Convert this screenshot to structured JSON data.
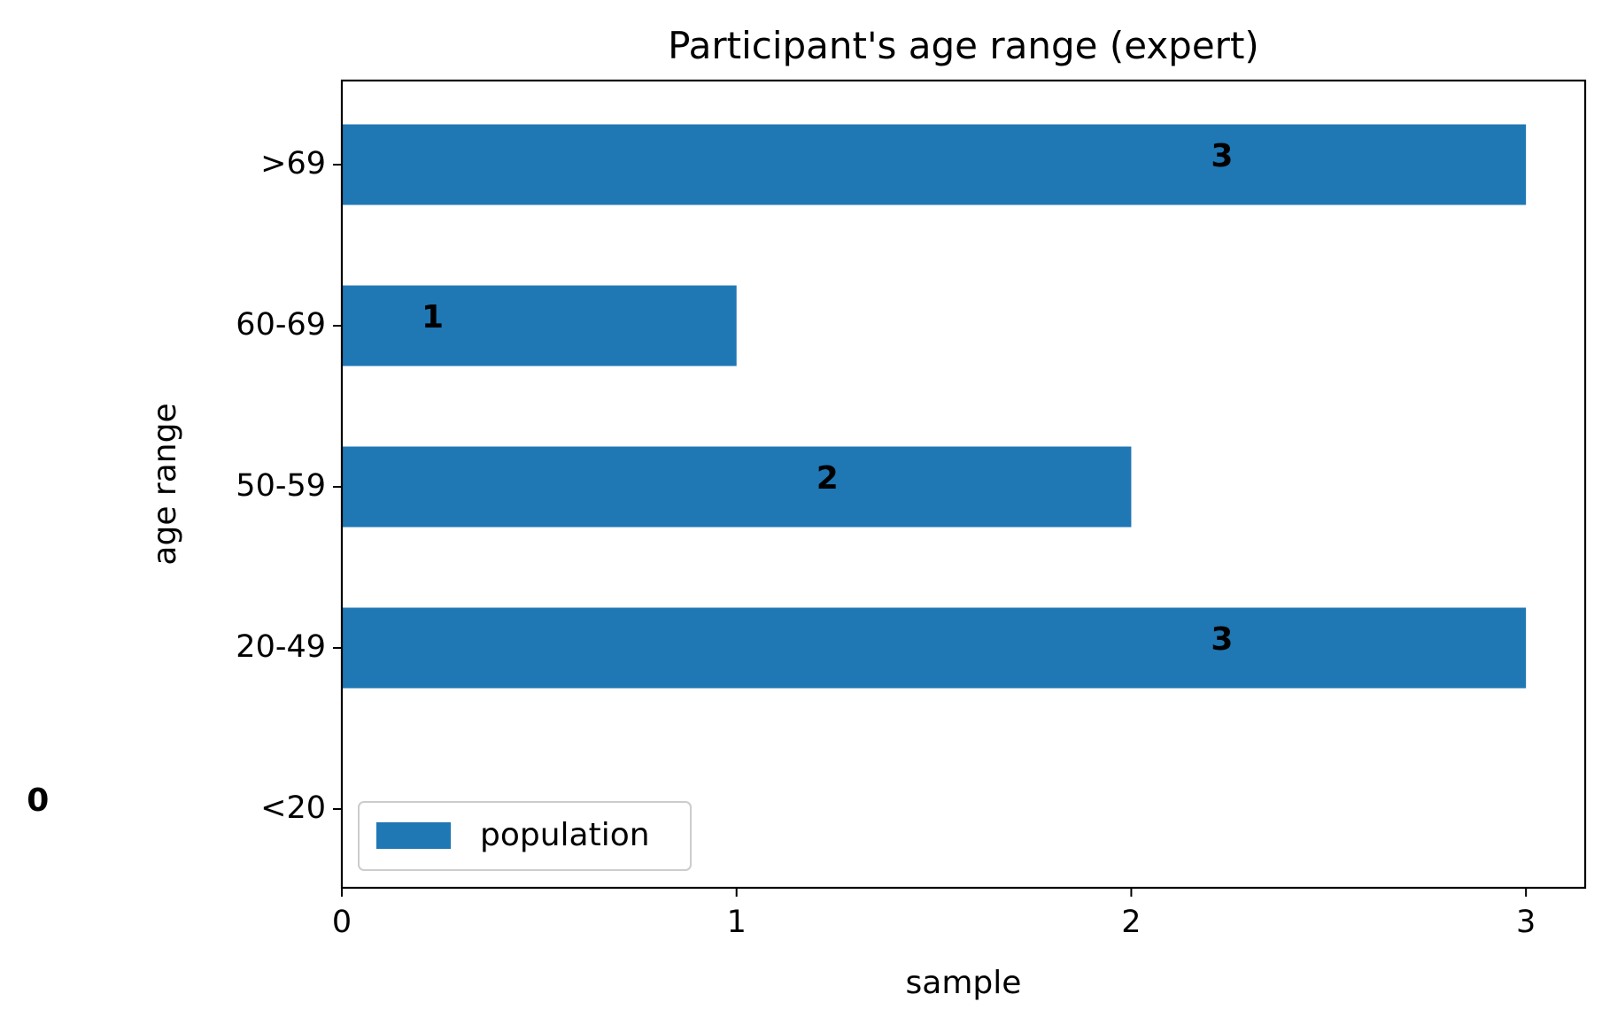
{
  "chart_data": {
    "type": "bar",
    "orientation": "horizontal",
    "title": "Participant's age range (expert)",
    "xlabel": "sample",
    "ylabel": "age range",
    "categories": [
      "<20",
      "20-49",
      "50-59",
      "60-69",
      ">69"
    ],
    "series": [
      {
        "name": "population",
        "values": [
          0,
          3,
          2,
          1,
          3
        ],
        "color": "#1f77b4"
      }
    ],
    "data_labels": [
      "0",
      "3",
      "2",
      "1",
      "3"
    ],
    "xlim": [
      0,
      3.15
    ],
    "x_ticks": [
      0,
      1,
      2,
      3
    ],
    "x_tick_labels": [
      "0",
      "1",
      "2",
      "3"
    ],
    "grid": false,
    "legend": {
      "placement": "lower-left",
      "entries": [
        "population"
      ]
    }
  }
}
